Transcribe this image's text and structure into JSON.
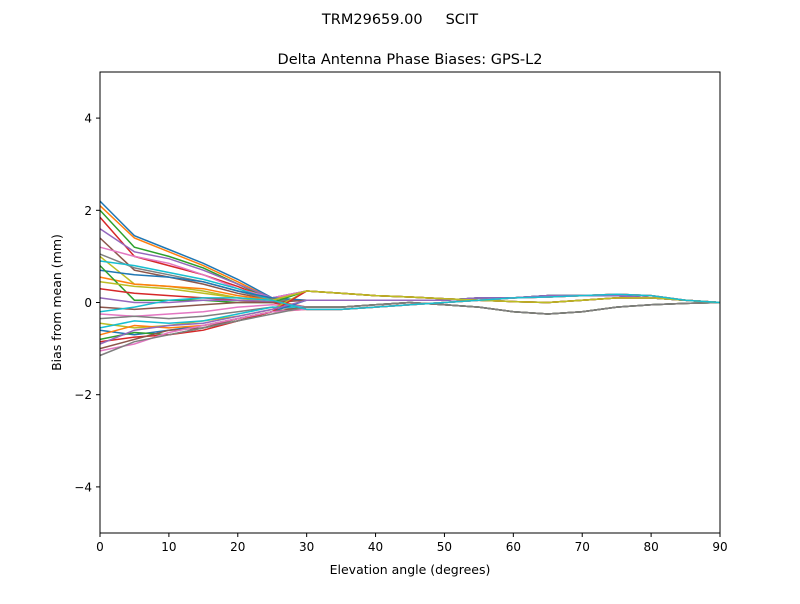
{
  "chart_data": {
    "type": "line",
    "suptitle": "TRM29659.00     SCIT",
    "title": "Delta Antenna Phase Biases: GPS-L2",
    "xlabel": "Elevation angle (degrees)",
    "ylabel": "Bias from mean (mm)",
    "xlim": [
      0,
      90
    ],
    "ylim": [
      -5,
      5
    ],
    "grid": false,
    "xticks": [
      0,
      10,
      20,
      30,
      40,
      50,
      60,
      70,
      80,
      90
    ],
    "xtick_labels": [
      "0",
      "10",
      "20",
      "30",
      "40",
      "50",
      "60",
      "70",
      "80",
      "90"
    ],
    "yticks": [
      -4,
      -2,
      0,
      2,
      4
    ],
    "ytick_labels": [
      "−4",
      "−2",
      "0",
      "2",
      "4"
    ],
    "colors": [
      "#1f77b4",
      "#ff7f0e",
      "#2ca02c",
      "#d62728",
      "#9467bd",
      "#8c564b",
      "#e377c2",
      "#7f7f7f",
      "#bcbd22",
      "#17becf"
    ],
    "x": [
      0,
      5,
      10,
      15,
      20,
      25,
      30,
      35,
      40,
      45,
      50,
      55,
      60,
      65,
      70,
      75,
      80,
      85,
      90
    ],
    "series": [
      {
        "values": [
          2.2,
          1.45,
          1.15,
          0.85,
          0.5,
          0.1,
          0.25,
          0.2,
          0.15,
          0.12,
          0.08,
          0.05,
          0.02,
          0.0,
          0.05,
          0.1,
          0.1,
          0.05,
          0
        ]
      },
      {
        "values": [
          2.1,
          1.4,
          1.1,
          0.8,
          0.45,
          0.08,
          0.25,
          0.2,
          0.15,
          0.12,
          0.08,
          0.05,
          0.02,
          0.0,
          0.05,
          0.1,
          0.1,
          0.05,
          0
        ]
      },
      {
        "values": [
          2.0,
          1.2,
          1.0,
          0.75,
          0.4,
          0.05,
          0.05,
          0.05,
          0.05,
          0.05,
          0.05,
          0.1,
          0.1,
          0.15,
          0.15,
          0.15,
          0.1,
          0.05,
          0
        ]
      },
      {
        "values": [
          1.85,
          1.0,
          0.8,
          0.6,
          0.35,
          0.05,
          0.05,
          0.05,
          0.05,
          0.05,
          0.05,
          0.1,
          0.1,
          0.15,
          0.15,
          0.15,
          0.1,
          0.05,
          0
        ]
      },
      {
        "values": [
          1.6,
          1.1,
          0.95,
          0.7,
          0.4,
          0.1,
          0.25,
          0.2,
          0.15,
          0.12,
          0.08,
          0.05,
          0.02,
          0.0,
          0.05,
          0.1,
          0.1,
          0.05,
          0
        ]
      },
      {
        "values": [
          1.4,
          0.7,
          0.55,
          0.4,
          0.2,
          0.05,
          -0.15,
          -0.15,
          -0.1,
          -0.05,
          0,
          0.05,
          0.1,
          0.12,
          0.15,
          0.18,
          0.15,
          0.05,
          0
        ]
      },
      {
        "values": [
          1.2,
          1.0,
          0.85,
          0.6,
          0.3,
          0.1,
          0.25,
          0.2,
          0.15,
          0.12,
          0.08,
          0.05,
          0.02,
          0.0,
          0.05,
          0.1,
          0.1,
          0.05,
          0
        ]
      },
      {
        "values": [
          1.05,
          0.75,
          0.6,
          0.45,
          0.25,
          0.05,
          0.05,
          0.05,
          0.05,
          0.05,
          0.05,
          0.1,
          0.1,
          0.15,
          0.15,
          0.15,
          0.1,
          0.05,
          0
        ]
      },
      {
        "values": [
          1.0,
          0.4,
          0.35,
          0.25,
          0.1,
          0.0,
          -0.1,
          -0.1,
          -0.05,
          0,
          -0.05,
          -0.1,
          -0.2,
          -0.25,
          -0.2,
          -0.1,
          -0.05,
          -0.02,
          0
        ]
      },
      {
        "values": [
          0.9,
          0.8,
          0.65,
          0.5,
          0.3,
          0.05,
          -0.15,
          -0.15,
          -0.1,
          -0.05,
          0,
          0.05,
          0.1,
          0.12,
          0.15,
          0.18,
          0.15,
          0.05,
          0
        ]
      },
      {
        "values": [
          0.7,
          0.6,
          0.55,
          0.45,
          0.25,
          0.1,
          0.05,
          0.05,
          0.05,
          0.05,
          0.05,
          0.1,
          0.1,
          0.15,
          0.15,
          0.15,
          0.1,
          0.05,
          0
        ]
      },
      {
        "values": [
          0.55,
          0.4,
          0.35,
          0.3,
          0.15,
          0.05,
          -0.1,
          -0.1,
          -0.05,
          0,
          -0.05,
          -0.1,
          -0.2,
          -0.25,
          -0.2,
          -0.1,
          -0.05,
          -0.02,
          0
        ]
      },
      {
        "values": [
          0.8,
          0.05,
          0.05,
          0.05,
          0.0,
          0.0,
          0.25,
          0.2,
          0.15,
          0.12,
          0.08,
          0.05,
          0.02,
          0.0,
          0.05,
          0.1,
          0.1,
          0.05,
          0
        ]
      },
      {
        "values": [
          0.3,
          0.2,
          0.15,
          0.1,
          0.05,
          0.0,
          -0.15,
          -0.15,
          -0.1,
          -0.05,
          0,
          0.05,
          0.1,
          0.12,
          0.15,
          0.18,
          0.15,
          0.05,
          0
        ]
      },
      {
        "values": [
          0.1,
          0.0,
          0.0,
          0.05,
          0.05,
          0.02,
          -0.1,
          -0.1,
          -0.05,
          0,
          -0.05,
          -0.1,
          -0.2,
          -0.25,
          -0.2,
          -0.1,
          -0.05,
          -0.02,
          0
        ]
      },
      {
        "values": [
          -0.1,
          -0.15,
          -0.1,
          -0.05,
          0.0,
          0.0,
          0.05,
          0.05,
          0.05,
          0.05,
          0.05,
          0.1,
          0.1,
          0.15,
          0.15,
          0.15,
          0.1,
          0.05,
          0
        ]
      },
      {
        "values": [
          -0.25,
          -0.3,
          -0.25,
          -0.2,
          -0.1,
          -0.05,
          -0.1,
          -0.1,
          -0.05,
          0,
          -0.05,
          -0.1,
          -0.2,
          -0.25,
          -0.2,
          -0.1,
          -0.05,
          -0.02,
          0
        ]
      },
      {
        "values": [
          -0.35,
          -0.3,
          -0.35,
          -0.3,
          -0.2,
          -0.1,
          -0.15,
          -0.15,
          -0.1,
          -0.05,
          0,
          0.05,
          0.1,
          0.12,
          0.15,
          0.18,
          0.15,
          0.05,
          0
        ]
      },
      {
        "values": [
          -0.45,
          -0.55,
          -0.5,
          -0.4,
          -0.3,
          -0.15,
          0.25,
          0.2,
          0.15,
          0.12,
          0.08,
          0.05,
          0.02,
          0.0,
          0.05,
          0.1,
          0.1,
          0.05,
          0
        ]
      },
      {
        "values": [
          -0.55,
          -0.4,
          -0.45,
          -0.4,
          -0.25,
          -0.1,
          -0.1,
          -0.1,
          -0.05,
          0,
          -0.05,
          -0.1,
          -0.2,
          -0.25,
          -0.2,
          -0.1,
          -0.05,
          -0.02,
          0
        ]
      },
      {
        "values": [
          -0.6,
          -0.7,
          -0.6,
          -0.5,
          -0.35,
          -0.2,
          0.05,
          0.05,
          0.05,
          0.05,
          0.05,
          0.1,
          0.1,
          0.15,
          0.15,
          0.15,
          0.1,
          0.05,
          0
        ]
      },
      {
        "values": [
          -0.7,
          -0.5,
          -0.55,
          -0.5,
          -0.35,
          -0.2,
          -0.15,
          -0.15,
          -0.1,
          -0.05,
          0,
          0.05,
          0.1,
          0.12,
          0.15,
          0.18,
          0.15,
          0.05,
          0
        ]
      },
      {
        "values": [
          -0.8,
          -0.65,
          -0.7,
          -0.55,
          -0.4,
          -0.2,
          -0.1,
          -0.1,
          -0.05,
          0,
          -0.05,
          -0.1,
          -0.2,
          -0.25,
          -0.2,
          -0.1,
          -0.05,
          -0.02,
          0
        ]
      },
      {
        "values": [
          -0.85,
          -0.75,
          -0.7,
          -0.6,
          -0.4,
          -0.2,
          0.25,
          0.2,
          0.15,
          0.12,
          0.08,
          0.05,
          0.02,
          0.0,
          0.05,
          0.1,
          0.1,
          0.05,
          0
        ]
      },
      {
        "values": [
          -0.9,
          -0.6,
          -0.5,
          -0.45,
          -0.3,
          -0.15,
          0.05,
          0.05,
          0.05,
          0.05,
          0.05,
          0.1,
          0.1,
          0.15,
          0.15,
          0.15,
          0.1,
          0.05,
          0
        ]
      },
      {
        "values": [
          -1.0,
          -0.8,
          -0.6,
          -0.55,
          -0.35,
          -0.2,
          -0.1,
          -0.1,
          -0.05,
          0,
          -0.05,
          -0.1,
          -0.2,
          -0.25,
          -0.2,
          -0.1,
          -0.05,
          -0.02,
          0
        ]
      },
      {
        "values": [
          -1.05,
          -0.9,
          -0.65,
          -0.5,
          -0.35,
          -0.2,
          -0.15,
          -0.15,
          -0.1,
          -0.05,
          0,
          0.05,
          0.1,
          0.12,
          0.15,
          0.18,
          0.15,
          0.05,
          0
        ]
      },
      {
        "values": [
          -1.15,
          -0.85,
          -0.7,
          -0.55,
          -0.4,
          -0.25,
          -0.1,
          -0.1,
          -0.05,
          0,
          -0.05,
          -0.1,
          -0.2,
          -0.25,
          -0.2,
          -0.1,
          -0.05,
          -0.02,
          0
        ]
      },
      {
        "values": [
          0.45,
          0.35,
          0.3,
          0.2,
          0.1,
          0.05,
          0.25,
          0.2,
          0.15,
          0.12,
          0.08,
          0.05,
          0.02,
          0.0,
          0.05,
          0.1,
          0.1,
          0.05,
          0
        ]
      },
      {
        "values": [
          -0.2,
          -0.1,
          0.05,
          0.1,
          0.1,
          0.05,
          -0.15,
          -0.15,
          -0.1,
          -0.05,
          0,
          0.05,
          0.1,
          0.12,
          0.15,
          0.18,
          0.15,
          0.05,
          0
        ]
      }
    ]
  }
}
